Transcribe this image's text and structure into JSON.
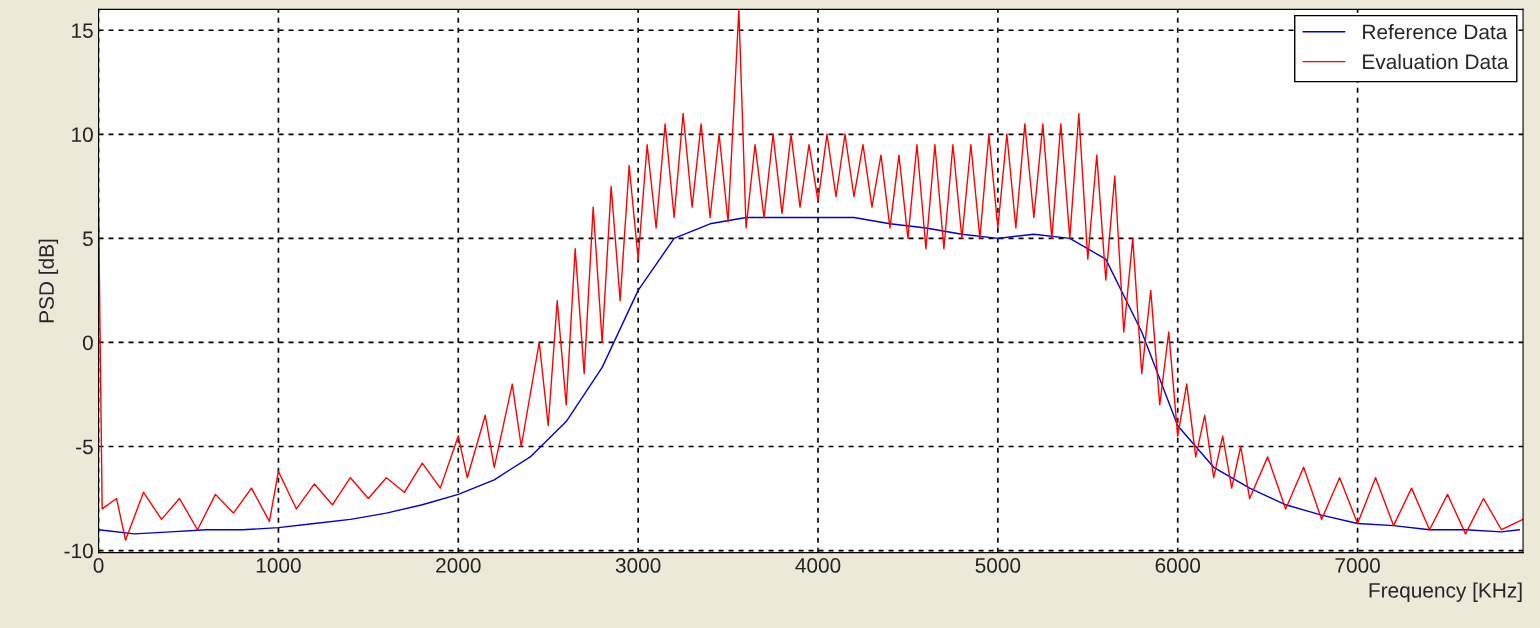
{
  "chart_data": {
    "type": "line",
    "xlabel": "Frequency [KHz]",
    "ylabel": "PSD [dB]",
    "xlim": [
      0,
      7920
    ],
    "ylim": [
      -10.1,
      16
    ],
    "xticks": [
      0,
      1000,
      2000,
      3000,
      4000,
      5000,
      6000,
      7000
    ],
    "yticks": [
      -10,
      -5,
      0,
      5,
      10,
      15
    ],
    "grid": true,
    "legend": "top right",
    "line_style": "solid",
    "marker": "none",
    "series": [
      {
        "name": "Reference Data",
        "color": "#0000cc",
        "x": [
          0,
          200,
          400,
          600,
          800,
          1000,
          1200,
          1400,
          1600,
          1800,
          2000,
          2200,
          2400,
          2600,
          2800,
          3000,
          3200,
          3400,
          3600,
          3800,
          4000,
          4200,
          4400,
          4600,
          4800,
          5000,
          5200,
          5400,
          5600,
          5800,
          6000,
          6200,
          6400,
          6600,
          6800,
          7000,
          7200,
          7400,
          7600,
          7800,
          7900
        ],
        "values": [
          -9,
          -9.2,
          -9.1,
          -9,
          -9,
          -8.9,
          -8.7,
          -8.5,
          -8.2,
          -7.8,
          -7.3,
          -6.6,
          -5.5,
          -3.8,
          -1.2,
          2.5,
          5,
          5.7,
          6,
          6,
          6,
          6,
          5.7,
          5.5,
          5.2,
          5,
          5.2,
          5,
          4,
          0.5,
          -4,
          -6,
          -7,
          -7.8,
          -8.3,
          -8.7,
          -8.8,
          -9,
          -9,
          -9.1,
          -9
        ]
      },
      {
        "name": "Evaluation Data",
        "color": "#ff0000",
        "x": [
          0,
          20,
          100,
          150,
          250,
          350,
          450,
          550,
          650,
          750,
          850,
          950,
          1000,
          1100,
          1200,
          1300,
          1400,
          1500,
          1600,
          1700,
          1800,
          1900,
          2000,
          2050,
          2150,
          2200,
          2300,
          2350,
          2450,
          2500,
          2550,
          2600,
          2650,
          2700,
          2750,
          2800,
          2850,
          2900,
          2950,
          3000,
          3050,
          3100,
          3150,
          3200,
          3250,
          3300,
          3350,
          3400,
          3450,
          3500,
          3560,
          3600,
          3650,
          3700,
          3750,
          3800,
          3850,
          3900,
          3950,
          4000,
          4050,
          4100,
          4150,
          4200,
          4250,
          4300,
          4350,
          4400,
          4450,
          4500,
          4550,
          4600,
          4650,
          4700,
          4750,
          4800,
          4850,
          4900,
          4950,
          5000,
          5050,
          5100,
          5150,
          5200,
          5250,
          5300,
          5350,
          5400,
          5450,
          5500,
          5550,
          5600,
          5650,
          5700,
          5750,
          5800,
          5850,
          5900,
          5950,
          6000,
          6050,
          6100,
          6150,
          6200,
          6250,
          6300,
          6350,
          6400,
          6500,
          6600,
          6700,
          6800,
          6900,
          7000,
          7100,
          7200,
          7300,
          7400,
          7500,
          7600,
          7700,
          7800,
          7920
        ],
        "values": [
          6.5,
          -8,
          -7.5,
          -9.5,
          -7.2,
          -8.5,
          -7.5,
          -9,
          -7.3,
          -8.2,
          -7,
          -8.6,
          -6.2,
          -8,
          -6.8,
          -7.8,
          -6.5,
          -7.5,
          -6.5,
          -7.2,
          -5.8,
          -7,
          -4.5,
          -6.5,
          -3.5,
          -6,
          -2,
          -5,
          0,
          -4,
          2,
          -3,
          4.5,
          -1.5,
          6.5,
          0,
          7.5,
          2,
          8.5,
          4,
          9.5,
          5.5,
          10.5,
          6,
          11,
          6.5,
          10.5,
          6,
          10,
          5.8,
          16,
          5.5,
          9.5,
          6,
          10,
          6.2,
          10,
          6.5,
          9.5,
          6.8,
          10,
          7,
          10,
          7,
          9.5,
          6.5,
          9,
          5.5,
          9,
          5,
          9.5,
          4.5,
          9.5,
          4.5,
          9.5,
          5,
          9.5,
          5,
          10,
          5.5,
          10,
          5.5,
          10.5,
          6,
          10.5,
          5,
          10.5,
          5,
          11,
          4,
          9,
          3,
          8,
          0.5,
          5,
          -1.5,
          2.5,
          -3,
          0.5,
          -4.5,
          -2,
          -5.5,
          -3.5,
          -6.5,
          -4.5,
          -7,
          -5,
          -7.5,
          -5.5,
          -8,
          -6,
          -8.5,
          -6.5,
          -8.7,
          -6.5,
          -8.8,
          -7,
          -9,
          -7.3,
          -9.2,
          -7.5,
          -9,
          -8.5
        ]
      }
    ]
  }
}
